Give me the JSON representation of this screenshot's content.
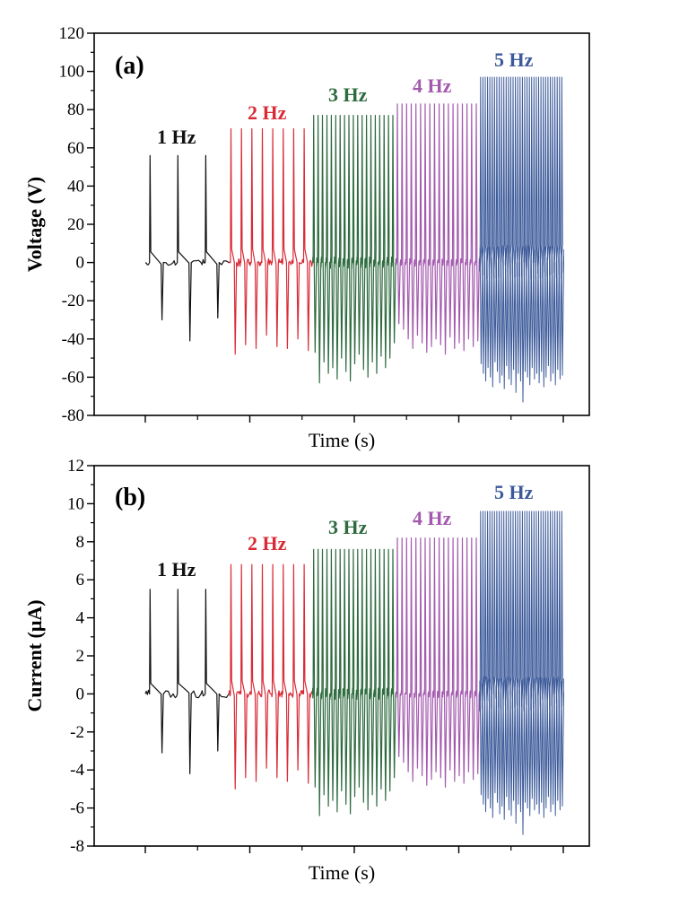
{
  "colors": {
    "1 Hz": "#111111",
    "2 Hz": "#d92b36",
    "3 Hz": "#2e6b3f",
    "4 Hz": "#a35aae",
    "5 Hz": "#3c5a9a"
  },
  "chart_data": [
    {
      "type": "line",
      "panel_label": "(a)",
      "xlabel": "Time (s)",
      "ylabel": "Voltage (V)",
      "ylim": [
        -80,
        120
      ],
      "yticks": [
        "-80",
        "-60",
        "-40",
        "-20",
        "0",
        "20",
        "40",
        "60",
        "80",
        "100",
        "120"
      ],
      "xticks": [
        "",
        "",
        "",
        "",
        ""
      ],
      "xlim": [
        0,
        10
      ],
      "series": [
        {
          "name": "1 Hz",
          "t_start": 0.0,
          "t_end": 2.0,
          "pulses": 3,
          "peak": 56,
          "valley": [
            -30,
            -41,
            -29
          ],
          "noise": 2
        },
        {
          "name": "2 Hz",
          "t_start": 2.0,
          "t_end": 4.0,
          "pulses": 8,
          "peak": 70,
          "valley": [
            -48,
            -43,
            -45,
            -38,
            -44,
            -45,
            -40,
            -46
          ],
          "noise": 2
        },
        {
          "name": "3 Hz",
          "t_start": 4.0,
          "t_end": 6.0,
          "pulses": 19,
          "peak": 77,
          "valley": [
            -47,
            -63,
            -52,
            -58,
            -55,
            -61,
            -50,
            -57,
            -62,
            -53,
            -48,
            -56,
            -60,
            -52,
            -58,
            -49,
            -55,
            -50,
            -42
          ],
          "noise": 3
        },
        {
          "name": "4 Hz",
          "t_start": 6.0,
          "t_end": 8.0,
          "pulses": 18,
          "peak": 83,
          "valley": [
            -32,
            -35,
            -40,
            -45,
            -38,
            -42,
            -47,
            -44,
            -40,
            -43,
            -48,
            -39,
            -45,
            -42,
            -46,
            -40,
            -44,
            -41
          ],
          "noise": 2
        },
        {
          "name": "5 Hz",
          "t_start": 8.0,
          "t_end": 10.0,
          "pulses": 36,
          "peak": 97,
          "valley": [
            -53,
            -58,
            -62,
            -55,
            -60,
            -65,
            -52,
            -57,
            -63,
            -59,
            -66,
            -54,
            -61,
            -64,
            -56,
            -68,
            -58,
            -62,
            -73,
            -57,
            -60,
            -64,
            -55,
            -61,
            -58,
            -63,
            -57,
            -65,
            -60,
            -54,
            -62,
            -58,
            -64,
            -56,
            -61,
            -59
          ],
          "noise": 9
        }
      ],
      "annotations": [
        "1 Hz",
        "2 Hz",
        "3 Hz",
        "4 Hz",
        "5 Hz"
      ]
    },
    {
      "type": "line",
      "panel_label": "(b)",
      "xlabel": "Time (s)",
      "ylabel": "Current (μA)",
      "ylim": [
        -8,
        12
      ],
      "yticks": [
        "-8",
        "-6",
        "-4",
        "-2",
        "0",
        "2",
        "4",
        "6",
        "8",
        "10",
        "12"
      ],
      "xticks": [
        "",
        "",
        "",
        "",
        ""
      ],
      "xlim": [
        0,
        10
      ],
      "series": [
        {
          "name": "1 Hz",
          "t_start": 0.0,
          "t_end": 2.0,
          "pulses": 3,
          "peak": 5.5,
          "valley": [
            -3.1,
            -4.2,
            -3.0
          ],
          "noise": 0.2
        },
        {
          "name": "2 Hz",
          "t_start": 2.0,
          "t_end": 4.0,
          "pulses": 8,
          "peak": 6.8,
          "valley": [
            -5.0,
            -4.4,
            -4.6,
            -3.9,
            -4.4,
            -4.6,
            -4.0,
            -4.7
          ],
          "noise": 0.2
        },
        {
          "name": "3 Hz",
          "t_start": 4.0,
          "t_end": 6.0,
          "pulses": 19,
          "peak": 7.6,
          "valley": [
            -4.9,
            -6.4,
            -5.3,
            -5.9,
            -5.6,
            -6.2,
            -5.1,
            -5.8,
            -6.3,
            -5.4,
            -4.9,
            -5.7,
            -6.1,
            -5.3,
            -5.9,
            -5.0,
            -5.6,
            -5.1,
            -4.4
          ],
          "noise": 0.3
        },
        {
          "name": "4 Hz",
          "t_start": 6.0,
          "t_end": 8.0,
          "pulses": 18,
          "peak": 8.2,
          "valley": [
            -3.3,
            -3.6,
            -4.1,
            -4.6,
            -3.9,
            -4.3,
            -4.8,
            -4.5,
            -4.1,
            -4.4,
            -4.9,
            -4.0,
            -4.6,
            -4.3,
            -4.7,
            -4.1,
            -4.5,
            -4.2
          ],
          "noise": 0.2
        },
        {
          "name": "5 Hz",
          "t_start": 8.0,
          "t_end": 10.0,
          "pulses": 36,
          "peak": 9.6,
          "valley": [
            -5.3,
            -5.8,
            -6.2,
            -5.5,
            -6.0,
            -6.5,
            -5.2,
            -5.7,
            -6.3,
            -5.9,
            -6.6,
            -5.4,
            -6.1,
            -6.4,
            -5.6,
            -6.8,
            -5.8,
            -6.2,
            -7.4,
            -5.7,
            -6.0,
            -6.4,
            -5.5,
            -6.1,
            -5.8,
            -6.3,
            -5.7,
            -6.5,
            -6.0,
            -5.4,
            -6.2,
            -5.8,
            -6.4,
            -5.6,
            -6.1,
            -5.9
          ],
          "noise": 0.9
        }
      ],
      "annotations": [
        "1 Hz",
        "2 Hz",
        "3 Hz",
        "4 Hz",
        "5 Hz"
      ]
    }
  ]
}
